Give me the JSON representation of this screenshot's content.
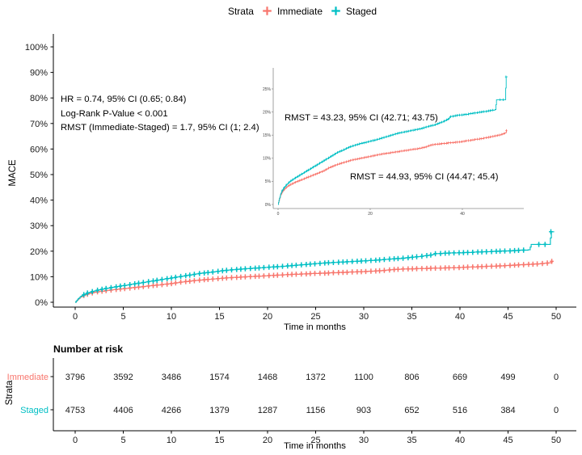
{
  "legend": {
    "title": "Strata",
    "items": [
      {
        "label": "Immediate",
        "color": "#F8766D"
      },
      {
        "label": "Staged",
        "color": "#00BFC4"
      }
    ]
  },
  "annotation_box": {
    "line1": "HR = 0.74, 95% CI (0.65; 0.84)",
    "line2": "Log-Rank P-Value < 0.001",
    "line3": "RMST (Immediate-Staged) = 1.7, 95% CI (1; 2.4)"
  },
  "inset": {
    "rmst_staged": "RMST = 43.23, 95% CI (42.71; 43.75)",
    "rmst_immediate": "RMST = 44.93, 95% CI (44.47; 45.4)",
    "y_tick_labels": [
      "0%",
      "5%",
      "10%",
      "15%",
      "20%",
      "25%"
    ],
    "x_ticks": [
      0,
      20,
      40
    ]
  },
  "chart_data": {
    "type": "line",
    "subtype": "kaplan-meier-cumulative-incidence-step",
    "title": "",
    "xlabel": "Time in months",
    "ylabel": "MACE",
    "xlim": [
      0,
      50
    ],
    "ylim_percent": [
      0,
      100
    ],
    "x_ticks": [
      0,
      5,
      10,
      15,
      20,
      25,
      30,
      35,
      40,
      45,
      50
    ],
    "y_ticks_percent": [
      0,
      10,
      20,
      30,
      40,
      50,
      60,
      70,
      80,
      90,
      100
    ],
    "grid": false,
    "legend_position": "top",
    "series": [
      {
        "name": "Immediate",
        "color": "#F8766D",
        "points": [
          [
            0,
            0
          ],
          [
            0.2,
            0.8
          ],
          [
            0.5,
            1.9
          ],
          [
            0.8,
            2.5
          ],
          [
            1.2,
            3.1
          ],
          [
            1.8,
            3.7
          ],
          [
            2.5,
            4.2
          ],
          [
            3.5,
            4.7
          ],
          [
            4.5,
            5.1
          ],
          [
            5.5,
            5.5
          ],
          [
            7,
            6.1
          ],
          [
            8.5,
            6.7
          ],
          [
            10,
            7.3
          ],
          [
            11,
            7.9
          ],
          [
            12,
            8.3
          ],
          [
            13,
            8.7
          ],
          [
            14,
            9.0
          ],
          [
            15,
            9.3
          ],
          [
            16,
            9.6
          ],
          [
            17,
            9.8
          ],
          [
            18,
            10.0
          ],
          [
            19,
            10.2
          ],
          [
            20,
            10.4
          ],
          [
            21,
            10.6
          ],
          [
            22,
            10.8
          ],
          [
            23,
            11.0
          ],
          [
            24,
            11.1
          ],
          [
            25,
            11.3
          ],
          [
            26,
            11.4
          ],
          [
            27,
            11.6
          ],
          [
            28,
            11.7
          ],
          [
            29,
            11.9
          ],
          [
            30,
            12.0
          ],
          [
            31,
            12.2
          ],
          [
            32,
            12.4
          ],
          [
            33,
            12.8
          ],
          [
            34,
            13.0
          ],
          [
            35,
            13.1
          ],
          [
            36,
            13.2
          ],
          [
            37,
            13.3
          ],
          [
            38,
            13.4
          ],
          [
            39,
            13.5
          ],
          [
            40,
            13.6
          ],
          [
            41,
            13.8
          ],
          [
            42,
            13.9
          ],
          [
            43,
            14.1
          ],
          [
            44,
            14.2
          ],
          [
            45,
            14.4
          ],
          [
            46,
            14.6
          ],
          [
            47,
            14.8
          ],
          [
            48,
            15.0
          ],
          [
            49,
            15.3
          ],
          [
            49.4,
            15.5
          ],
          [
            49.6,
            16.0
          ]
        ],
        "extra_censor_marks": [
          [
            49.55,
            16.0
          ]
        ],
        "censor_mark_end": 49.1
      },
      {
        "name": "Staged",
        "color": "#00BFC4",
        "points": [
          [
            0,
            0
          ],
          [
            0.2,
            0.9
          ],
          [
            0.5,
            2.1
          ],
          [
            0.8,
            2.8
          ],
          [
            1.2,
            3.5
          ],
          [
            1.8,
            4.2
          ],
          [
            2.5,
            4.9
          ],
          [
            3.5,
            5.6
          ],
          [
            4.5,
            6.2
          ],
          [
            5.5,
            6.8
          ],
          [
            7,
            7.7
          ],
          [
            8.5,
            8.6
          ],
          [
            10,
            9.5
          ],
          [
            11,
            10.1
          ],
          [
            12,
            10.7
          ],
          [
            13,
            11.3
          ],
          [
            14,
            11.7
          ],
          [
            15,
            12.2
          ],
          [
            16,
            12.6
          ],
          [
            17,
            12.9
          ],
          [
            18,
            13.2
          ],
          [
            19,
            13.4
          ],
          [
            20,
            13.7
          ],
          [
            21,
            13.9
          ],
          [
            22,
            14.2
          ],
          [
            23,
            14.5
          ],
          [
            24,
            14.8
          ],
          [
            25,
            15.1
          ],
          [
            26,
            15.4
          ],
          [
            27,
            15.6
          ],
          [
            28,
            15.8
          ],
          [
            29,
            16.0
          ],
          [
            30,
            16.2
          ],
          [
            31,
            16.4
          ],
          [
            32,
            16.7
          ],
          [
            33,
            17.0
          ],
          [
            34,
            17.2
          ],
          [
            35,
            17.6
          ],
          [
            36,
            18.0
          ],
          [
            37,
            18.5
          ],
          [
            37.4,
            19.0
          ],
          [
            38,
            19.1
          ],
          [
            39,
            19.3
          ],
          [
            40,
            19.4
          ],
          [
            41,
            19.5
          ],
          [
            42,
            19.7
          ],
          [
            43,
            19.8
          ],
          [
            44,
            20.0
          ],
          [
            45,
            20.1
          ],
          [
            46,
            20.3
          ],
          [
            47.2,
            20.5
          ],
          [
            47.4,
            22.6
          ],
          [
            49.3,
            22.7
          ],
          [
            49.5,
            27.6
          ],
          [
            49.8,
            27.6
          ]
        ],
        "extra_censor_marks": [
          [
            48.2,
            22.65
          ],
          [
            48.85,
            22.65
          ],
          [
            49.45,
            27.6
          ]
        ],
        "censor_mark_end": 47.0
      }
    ]
  },
  "risk_table": {
    "title": "Number at risk",
    "ylabel": "Strata",
    "xlabel": "Time in months",
    "x_ticks": [
      0,
      5,
      10,
      15,
      20,
      25,
      30,
      35,
      40,
      45,
      50
    ],
    "rows": [
      {
        "label": "Immediate",
        "color": "#F8766D",
        "values": [
          3796,
          3592,
          3486,
          1574,
          1468,
          1372,
          1100,
          806,
          669,
          499,
          0
        ]
      },
      {
        "label": "Staged",
        "color": "#00BFC4",
        "values": [
          4753,
          4406,
          4266,
          1379,
          1287,
          1156,
          903,
          652,
          516,
          384,
          0
        ]
      }
    ]
  }
}
